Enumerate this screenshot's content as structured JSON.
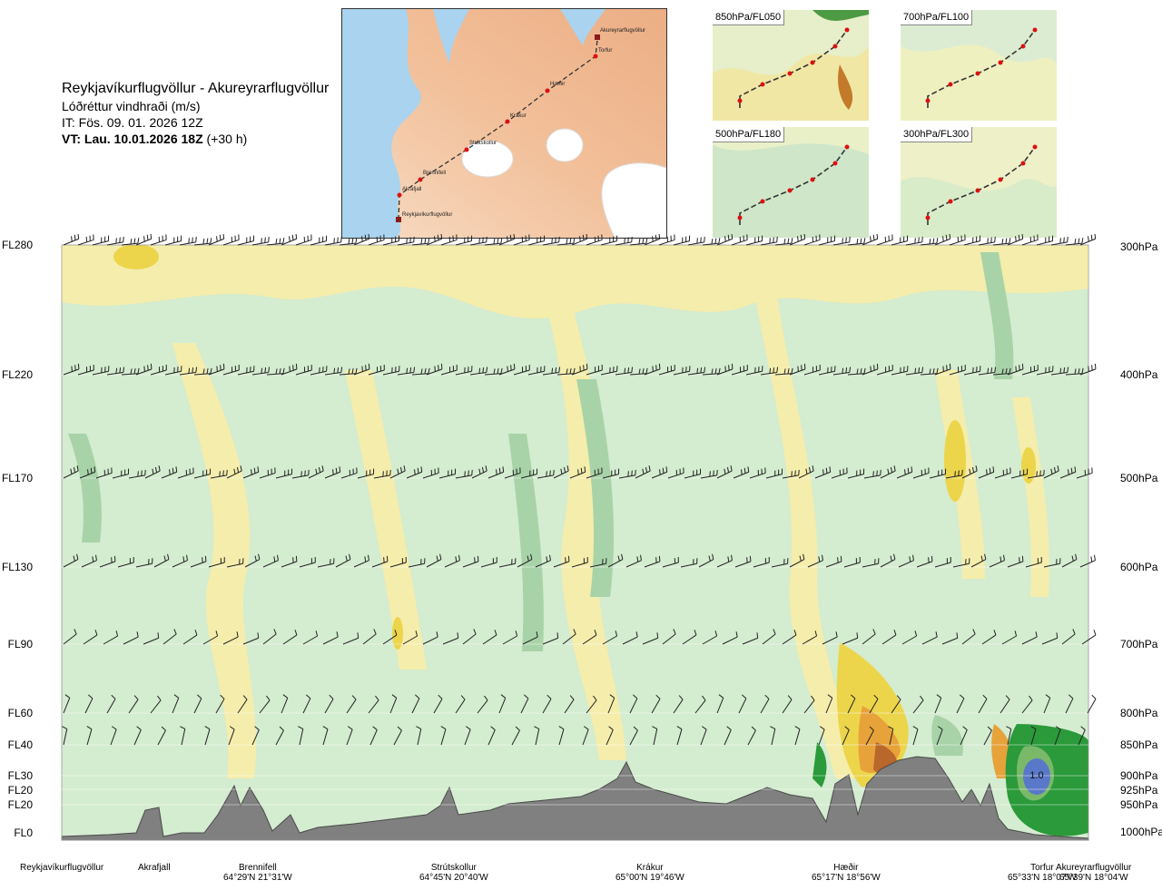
{
  "header": {
    "title": "Reykjavíkurflugvöllur - Akureyrarflugvöllur",
    "subtitle": "Lóðréttur vindhraði (m/s)",
    "it_line": "IT: Fös. 09. 01. 2026 12Z",
    "vt_bold": "VT: Lau. 10.01.2026 18Z",
    "vt_rest": " (+30 h)"
  },
  "route_map": {
    "points": [
      "Akureyrarflugvöllur",
      "Torfur",
      "Hæðir",
      "Krákur",
      "Strútskollur",
      "Brennifell",
      "Akrafjall",
      "Reykjavíkurflugvöllur"
    ]
  },
  "mini_maps": [
    {
      "label": "850hPa/FL050"
    },
    {
      "label": "700hPa/FL100"
    },
    {
      "label": "500hPa/FL180"
    },
    {
      "label": "300hPa/FL300"
    }
  ],
  "levels": [
    {
      "fl": "FL280",
      "pa": "300hPa"
    },
    {
      "fl": "FL220",
      "pa": "400hPa"
    },
    {
      "fl": "FL170",
      "pa": "500hPa"
    },
    {
      "fl": "FL130",
      "pa": "600hPa"
    },
    {
      "fl": "FL90",
      "pa": "700hPa"
    },
    {
      "fl": "FL60",
      "pa": "800hPa"
    },
    {
      "fl": "FL40",
      "pa": "850hPa"
    },
    {
      "fl": "FL30",
      "pa": "900hPa"
    },
    {
      "fl": "FL20",
      "pa": "925hPa"
    },
    {
      "fl": "FL20",
      "pa": "950hPa"
    },
    {
      "fl": "FL0",
      "pa": "1000hPa"
    }
  ],
  "contour_value": "1.0",
  "stations": [
    {
      "name": "Reykjavíkurflugvöllur",
      "coord": ""
    },
    {
      "name": "Akrafjall",
      "coord": ""
    },
    {
      "name": "Brennifell",
      "coord": "64°29'N 21°31'W"
    },
    {
      "name": "Strútskollur",
      "coord": "64°45'N 20°40'W"
    },
    {
      "name": "Krákur",
      "coord": "65°00'N 19°46'W"
    },
    {
      "name": "Hæðir",
      "coord": "65°17'N 18°56'W"
    },
    {
      "name": "Torfur",
      "coord": "65°33'N 18°07'W"
    },
    {
      "name": "Akureyrarflugvöllur",
      "coord": "65°39'N 18°04'W"
    }
  ],
  "colors": {
    "weak_green": "#d4ecd0",
    "mid_green": "#a8d3a8",
    "dark_green": "#2a9a3a",
    "pale_yellow": "#f5edab",
    "yellow": "#ecd54a",
    "orange": "#e7a23a",
    "brown": "#b9672a",
    "terrain": "#808080",
    "blue": "#5a78c8"
  }
}
